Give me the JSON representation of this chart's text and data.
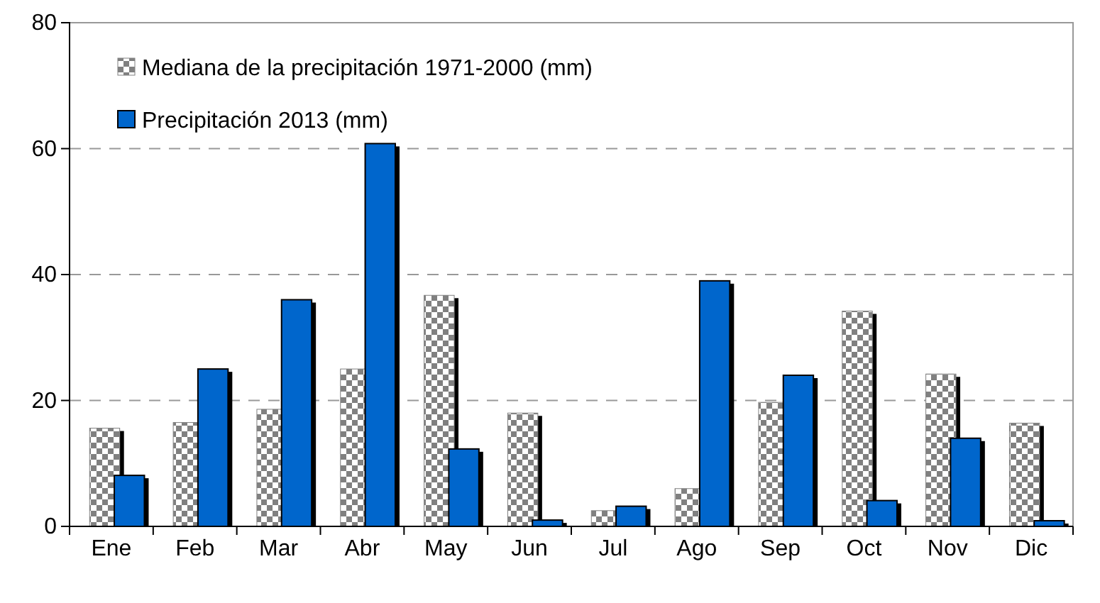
{
  "chart_data": {
    "type": "bar",
    "categories": [
      "Ene",
      "Feb",
      "Mar",
      "Abr",
      "May",
      "Jun",
      "Jul",
      "Ago",
      "Sep",
      "Oct",
      "Nov",
      "Dic"
    ],
    "series": [
      {
        "name": "Mediana de la precipitación 1971-2000 (mm)",
        "color": "#808080",
        "values": [
          15.6,
          16.5,
          18.6,
          25,
          36.7,
          18,
          2.5,
          6,
          19.7,
          34.2,
          24.2,
          16.4
        ]
      },
      {
        "name": "Precipitación 2013 (mm)",
        "color": "#0066cc",
        "values": [
          8.1,
          25,
          36,
          60.8,
          12.3,
          1,
          3.2,
          39,
          24,
          4.1,
          14,
          0.9
        ]
      }
    ],
    "ylim": [
      0,
      80
    ],
    "yticks": [
      0,
      20,
      40,
      60,
      80
    ],
    "grid": "y",
    "legend": "top left"
  }
}
